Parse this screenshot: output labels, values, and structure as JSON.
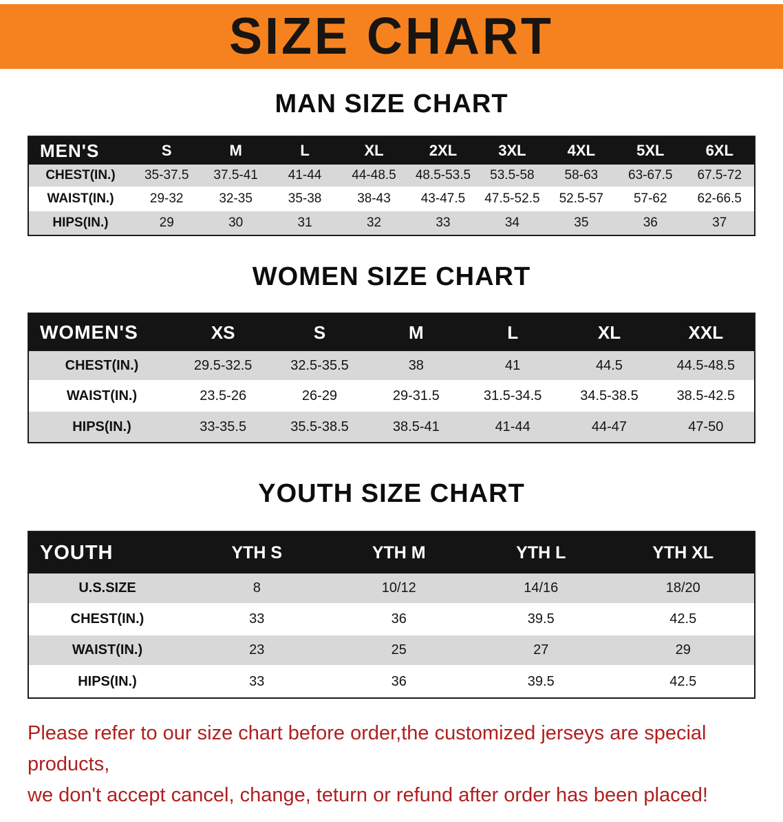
{
  "banner": {
    "title": "SIZE CHART"
  },
  "sections": [
    {
      "heading": "MAN SIZE CHART",
      "table": {
        "header": [
          "MEN'S",
          "S",
          "M",
          "L",
          "XL",
          "2XL",
          "3XL",
          "4XL",
          "5XL",
          "6XL"
        ],
        "rows": [
          {
            "label": "CHEST(IN.)",
            "values": [
              "35-37.5",
              "37.5-41",
              "41-44",
              "44-48.5",
              "48.5-53.5",
              "53.5-58",
              "58-63",
              "63-67.5",
              "67.5-72"
            ]
          },
          {
            "label": "WAIST(IN.)",
            "values": [
              "29-32",
              "32-35",
              "35-38",
              "38-43",
              "43-47.5",
              "47.5-52.5",
              "52.5-57",
              "57-62",
              "62-66.5"
            ]
          },
          {
            "label": "HIPS(IN.)",
            "values": [
              "29",
              "30",
              "31",
              "32",
              "33",
              "34",
              "35",
              "36",
              "37"
            ]
          }
        ]
      }
    },
    {
      "heading": "WOMEN SIZE CHART",
      "table": {
        "header": [
          "WOMEN'S",
          "XS",
          "S",
          "M",
          "L",
          "XL",
          "XXL"
        ],
        "rows": [
          {
            "label": "CHEST(IN.)",
            "values": [
              "29.5-32.5",
              "32.5-35.5",
              "38",
              "41",
              "44.5",
              "44.5-48.5"
            ]
          },
          {
            "label": "WAIST(IN.)",
            "values": [
              "23.5-26",
              "26-29",
              "29-31.5",
              "31.5-34.5",
              "34.5-38.5",
              "38.5-42.5"
            ]
          },
          {
            "label": "HIPS(IN.)",
            "values": [
              "33-35.5",
              "35.5-38.5",
              "38.5-41",
              "41-44",
              "44-47",
              "47-50"
            ]
          }
        ]
      }
    },
    {
      "heading": "YOUTH SIZE CHART",
      "table": {
        "header": [
          "YOUTH",
          "YTH S",
          "YTH M",
          "YTH L",
          "YTH XL"
        ],
        "rows": [
          {
            "label": "U.S.SIZE",
            "values": [
              "8",
              "10/12",
              "14/16",
              "18/20"
            ]
          },
          {
            "label": "CHEST(IN.)",
            "values": [
              "33",
              "36",
              "39.5",
              "42.5"
            ]
          },
          {
            "label": "WAIST(IN.)",
            "values": [
              "23",
              "25",
              "27",
              "29"
            ]
          },
          {
            "label": "HIPS(IN.)",
            "values": [
              "33",
              "36",
              "39.5",
              "42.5"
            ]
          }
        ]
      }
    }
  ],
  "footer": {
    "line1": "Please refer to our size chart before order,the customized jerseys are special products,",
    "line2": "we don't accept cancel, change, teturn or refund after order has been placed!"
  },
  "colors": {
    "banner_bg": "#f6821f",
    "header_bg": "#141414",
    "row_stripe": "#d8d8d8",
    "warning_text": "#b01f1f"
  }
}
